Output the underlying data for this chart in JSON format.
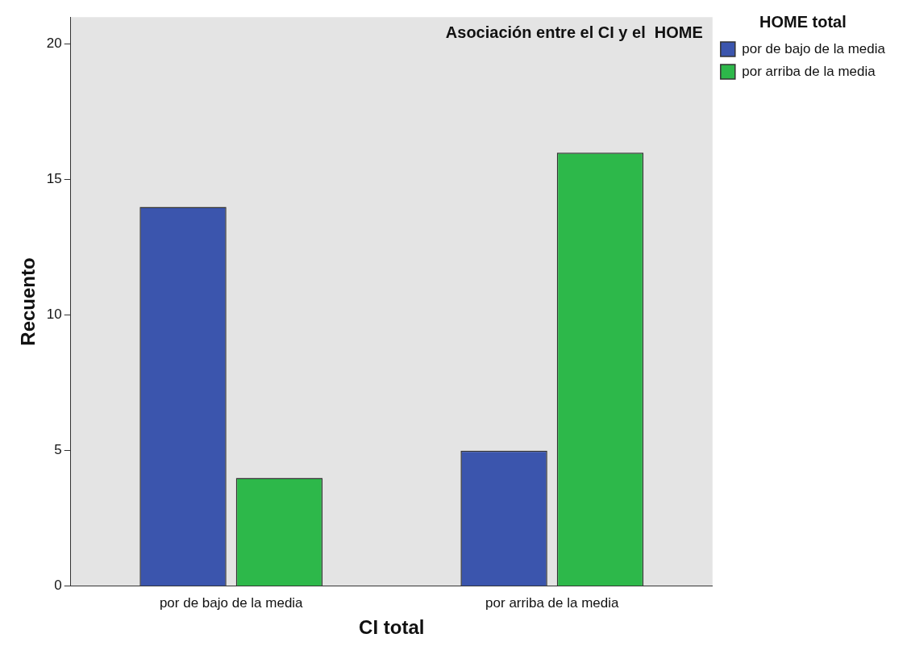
{
  "chart_data": {
    "type": "bar",
    "title": "Asociación entre el CI y el  HOME",
    "xlabel": "CI total",
    "ylabel": "Recuento",
    "legend_title": "HOME total",
    "categories": [
      "por de bajo de la media",
      "por arriba de la media"
    ],
    "series": [
      {
        "name": "por de bajo de la media",
        "color": "#3b55ad",
        "values": [
          14,
          5
        ]
      },
      {
        "name": "por arriba de la media",
        "color": "#2db84a",
        "values": [
          4,
          16
        ]
      }
    ],
    "ylim": [
      0,
      21
    ],
    "yticks": [
      0,
      5,
      10,
      15,
      20
    ],
    "grid": false,
    "legend": "right"
  }
}
